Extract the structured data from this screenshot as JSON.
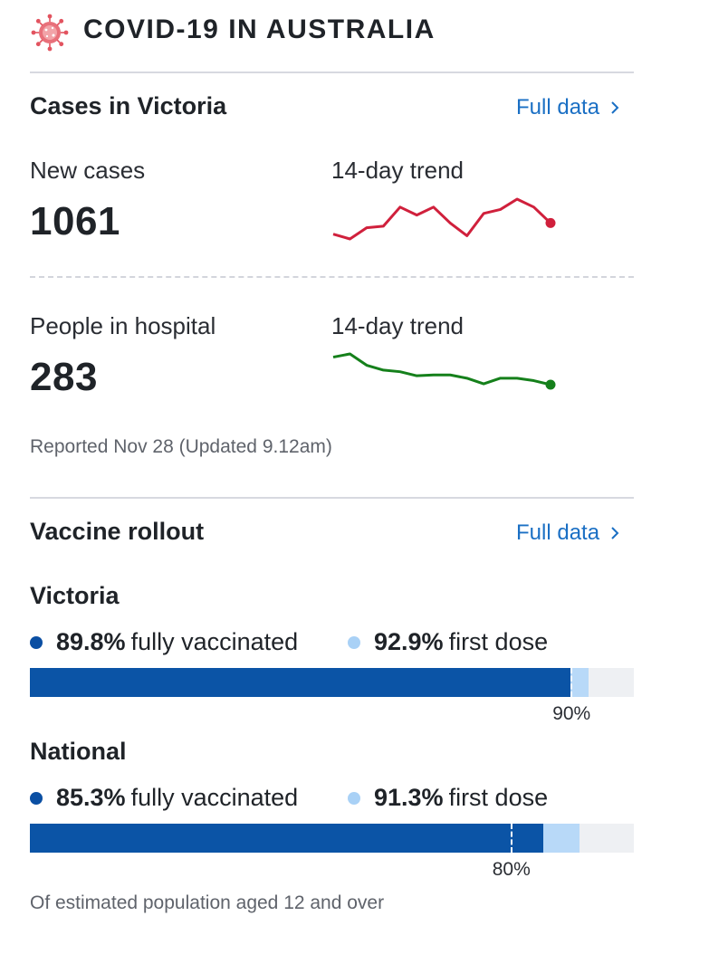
{
  "header": {
    "title": "COVID-19 IN AUSTRALIA",
    "icon": "virus-icon"
  },
  "cases": {
    "section_title": "Cases in Victoria",
    "full_data_link": "Full data",
    "new_cases": {
      "label": "New cases",
      "value": "1061",
      "trend_label": "14-day trend",
      "trend_color": "#d0203c",
      "trend": [
        1.6,
        1.0,
        2.4,
        2.6,
        5.0,
        4.0,
        5.0,
        3.0,
        1.4,
        4.2,
        4.7,
        6.0,
        5.0,
        3.0
      ]
    },
    "hospital": {
      "label": "People in hospital",
      "value": "283",
      "trend_label": "14-day trend",
      "trend_color": "#15801b",
      "trend": [
        5.6,
        6.0,
        4.6,
        4.0,
        3.8,
        3.3,
        3.4,
        3.4,
        3.0,
        2.3,
        3.0,
        3.0,
        2.7,
        2.2
      ]
    },
    "reported": "Reported Nov 28 (Updated 9.12am)"
  },
  "vaccine": {
    "section_title": "Vaccine rollout",
    "full_data_link": "Full data",
    "colors": {
      "fully": "#0b54a6",
      "first": "#b8d9f8",
      "track": "#eef0f3"
    },
    "regions": [
      {
        "name": "Victoria",
        "fully_value": "89.8%",
        "fully_label": "fully vaccinated",
        "first_value": "92.9%",
        "first_label": "first dose",
        "fully_pct": 89.8,
        "first_pct": 92.9,
        "target_pct": 90,
        "target_label": "90%"
      },
      {
        "name": "National",
        "fully_value": "85.3%",
        "fully_label": "fully vaccinated",
        "first_value": "91.3%",
        "first_label": "first dose",
        "fully_pct": 85.3,
        "first_pct": 91.3,
        "target_pct": 80,
        "target_label": "80%"
      }
    ],
    "footnote": "Of estimated population aged 12 and over"
  }
}
